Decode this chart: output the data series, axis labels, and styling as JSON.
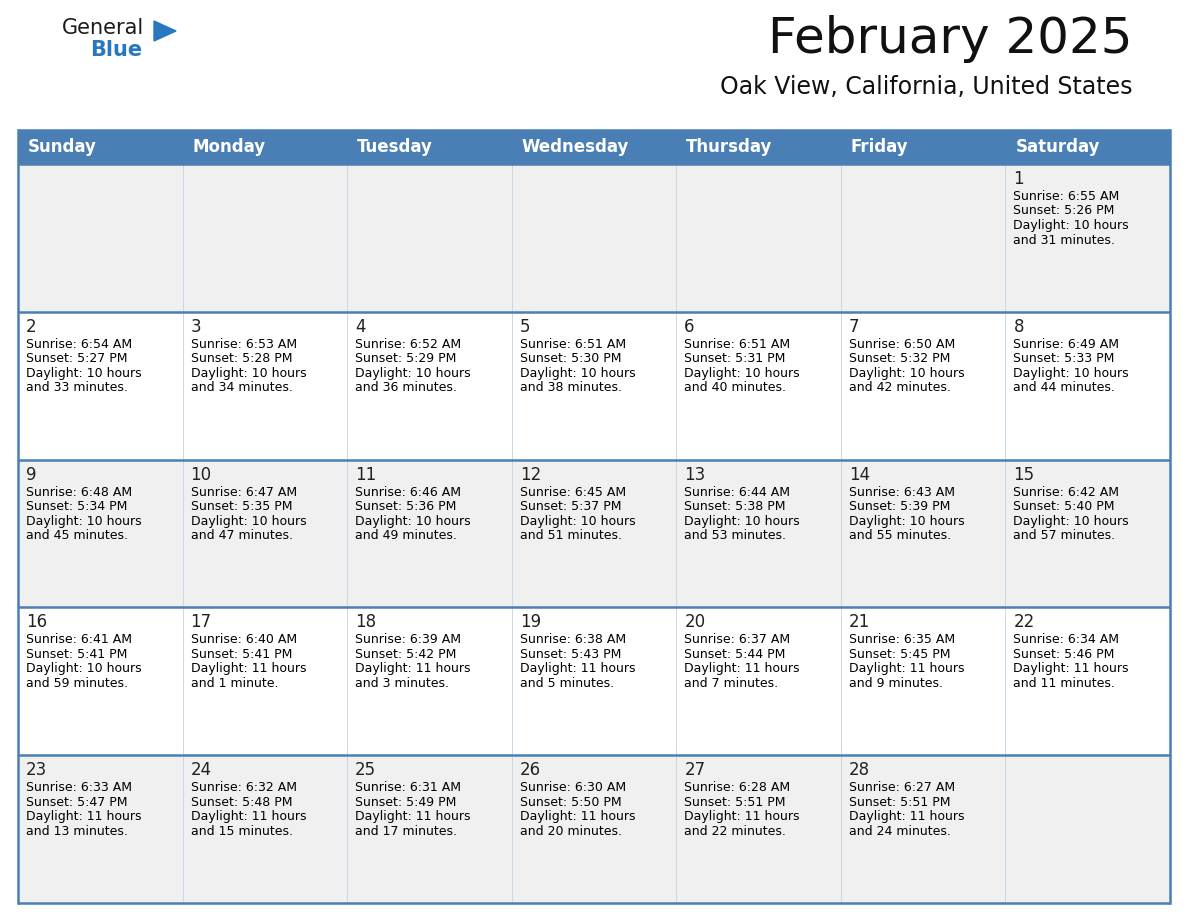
{
  "title": "February 2025",
  "subtitle": "Oak View, California, United States",
  "header_bg": "#4a7fb5",
  "header_text_color": "#FFFFFF",
  "day_names": [
    "Sunday",
    "Monday",
    "Tuesday",
    "Wednesday",
    "Thursday",
    "Friday",
    "Saturday"
  ],
  "row_bg_colors": [
    "#f0f0f0",
    "#ffffff",
    "#f0f0f0",
    "#ffffff",
    "#f0f0f0"
  ],
  "border_color": "#4a7fb5",
  "cell_border_color": "#b0c4de",
  "text_color": "#000000",
  "day_num_color": "#222222",
  "info_fontsize": 9.0,
  "daynum_fontsize": 12,
  "header_fontsize": 12,
  "calendar": [
    [
      {
        "day": null,
        "sunrise": null,
        "sunset": null,
        "daylight": null
      },
      {
        "day": null,
        "sunrise": null,
        "sunset": null,
        "daylight": null
      },
      {
        "day": null,
        "sunrise": null,
        "sunset": null,
        "daylight": null
      },
      {
        "day": null,
        "sunrise": null,
        "sunset": null,
        "daylight": null
      },
      {
        "day": null,
        "sunrise": null,
        "sunset": null,
        "daylight": null
      },
      {
        "day": null,
        "sunrise": null,
        "sunset": null,
        "daylight": null
      },
      {
        "day": 1,
        "sunrise": "6:55 AM",
        "sunset": "5:26 PM",
        "daylight_line1": "Daylight: 10 hours",
        "daylight_line2": "and 31 minutes."
      }
    ],
    [
      {
        "day": 2,
        "sunrise": "6:54 AM",
        "sunset": "5:27 PM",
        "daylight_line1": "Daylight: 10 hours",
        "daylight_line2": "and 33 minutes."
      },
      {
        "day": 3,
        "sunrise": "6:53 AM",
        "sunset": "5:28 PM",
        "daylight_line1": "Daylight: 10 hours",
        "daylight_line2": "and 34 minutes."
      },
      {
        "day": 4,
        "sunrise": "6:52 AM",
        "sunset": "5:29 PM",
        "daylight_line1": "Daylight: 10 hours",
        "daylight_line2": "and 36 minutes."
      },
      {
        "day": 5,
        "sunrise": "6:51 AM",
        "sunset": "5:30 PM",
        "daylight_line1": "Daylight: 10 hours",
        "daylight_line2": "and 38 minutes."
      },
      {
        "day": 6,
        "sunrise": "6:51 AM",
        "sunset": "5:31 PM",
        "daylight_line1": "Daylight: 10 hours",
        "daylight_line2": "and 40 minutes."
      },
      {
        "day": 7,
        "sunrise": "6:50 AM",
        "sunset": "5:32 PM",
        "daylight_line1": "Daylight: 10 hours",
        "daylight_line2": "and 42 minutes."
      },
      {
        "day": 8,
        "sunrise": "6:49 AM",
        "sunset": "5:33 PM",
        "daylight_line1": "Daylight: 10 hours",
        "daylight_line2": "and 44 minutes."
      }
    ],
    [
      {
        "day": 9,
        "sunrise": "6:48 AM",
        "sunset": "5:34 PM",
        "daylight_line1": "Daylight: 10 hours",
        "daylight_line2": "and 45 minutes."
      },
      {
        "day": 10,
        "sunrise": "6:47 AM",
        "sunset": "5:35 PM",
        "daylight_line1": "Daylight: 10 hours",
        "daylight_line2": "and 47 minutes."
      },
      {
        "day": 11,
        "sunrise": "6:46 AM",
        "sunset": "5:36 PM",
        "daylight_line1": "Daylight: 10 hours",
        "daylight_line2": "and 49 minutes."
      },
      {
        "day": 12,
        "sunrise": "6:45 AM",
        "sunset": "5:37 PM",
        "daylight_line1": "Daylight: 10 hours",
        "daylight_line2": "and 51 minutes."
      },
      {
        "day": 13,
        "sunrise": "6:44 AM",
        "sunset": "5:38 PM",
        "daylight_line1": "Daylight: 10 hours",
        "daylight_line2": "and 53 minutes."
      },
      {
        "day": 14,
        "sunrise": "6:43 AM",
        "sunset": "5:39 PM",
        "daylight_line1": "Daylight: 10 hours",
        "daylight_line2": "and 55 minutes."
      },
      {
        "day": 15,
        "sunrise": "6:42 AM",
        "sunset": "5:40 PM",
        "daylight_line1": "Daylight: 10 hours",
        "daylight_line2": "and 57 minutes."
      }
    ],
    [
      {
        "day": 16,
        "sunrise": "6:41 AM",
        "sunset": "5:41 PM",
        "daylight_line1": "Daylight: 10 hours",
        "daylight_line2": "and 59 minutes."
      },
      {
        "day": 17,
        "sunrise": "6:40 AM",
        "sunset": "5:41 PM",
        "daylight_line1": "Daylight: 11 hours",
        "daylight_line2": "and 1 minute."
      },
      {
        "day": 18,
        "sunrise": "6:39 AM",
        "sunset": "5:42 PM",
        "daylight_line1": "Daylight: 11 hours",
        "daylight_line2": "and 3 minutes."
      },
      {
        "day": 19,
        "sunrise": "6:38 AM",
        "sunset": "5:43 PM",
        "daylight_line1": "Daylight: 11 hours",
        "daylight_line2": "and 5 minutes."
      },
      {
        "day": 20,
        "sunrise": "6:37 AM",
        "sunset": "5:44 PM",
        "daylight_line1": "Daylight: 11 hours",
        "daylight_line2": "and 7 minutes."
      },
      {
        "day": 21,
        "sunrise": "6:35 AM",
        "sunset": "5:45 PM",
        "daylight_line1": "Daylight: 11 hours",
        "daylight_line2": "and 9 minutes."
      },
      {
        "day": 22,
        "sunrise": "6:34 AM",
        "sunset": "5:46 PM",
        "daylight_line1": "Daylight: 11 hours",
        "daylight_line2": "and 11 minutes."
      }
    ],
    [
      {
        "day": 23,
        "sunrise": "6:33 AM",
        "sunset": "5:47 PM",
        "daylight_line1": "Daylight: 11 hours",
        "daylight_line2": "and 13 minutes."
      },
      {
        "day": 24,
        "sunrise": "6:32 AM",
        "sunset": "5:48 PM",
        "daylight_line1": "Daylight: 11 hours",
        "daylight_line2": "and 15 minutes."
      },
      {
        "day": 25,
        "sunrise": "6:31 AM",
        "sunset": "5:49 PM",
        "daylight_line1": "Daylight: 11 hours",
        "daylight_line2": "and 17 minutes."
      },
      {
        "day": 26,
        "sunrise": "6:30 AM",
        "sunset": "5:50 PM",
        "daylight_line1": "Daylight: 11 hours",
        "daylight_line2": "and 20 minutes."
      },
      {
        "day": 27,
        "sunrise": "6:28 AM",
        "sunset": "5:51 PM",
        "daylight_line1": "Daylight: 11 hours",
        "daylight_line2": "and 22 minutes."
      },
      {
        "day": 28,
        "sunrise": "6:27 AM",
        "sunset": "5:51 PM",
        "daylight_line1": "Daylight: 11 hours",
        "daylight_line2": "and 24 minutes."
      },
      {
        "day": null,
        "sunrise": null,
        "sunset": null,
        "daylight_line1": null,
        "daylight_line2": null
      }
    ]
  ],
  "logo_general_color": "#1a1a1a",
  "logo_blue_color": "#2878C0",
  "logo_triangle_color": "#2878C0"
}
